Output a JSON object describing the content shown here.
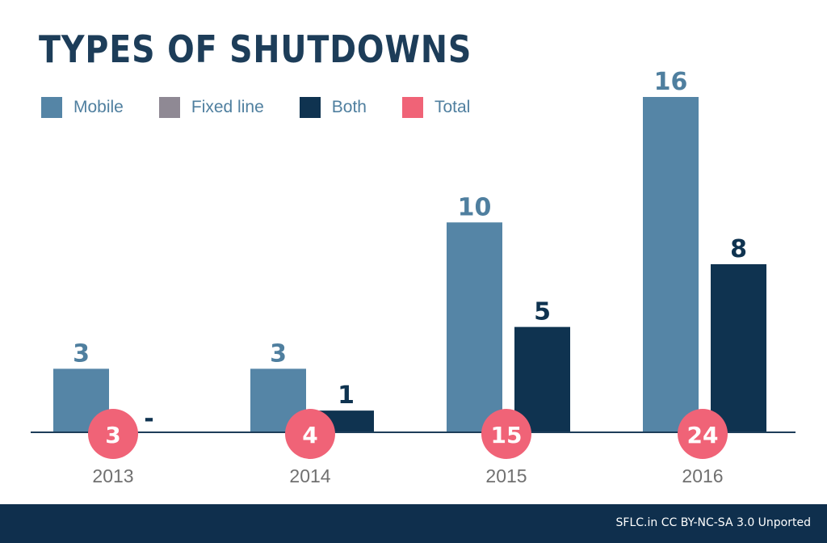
{
  "chart_data": {
    "type": "bar",
    "title": "TYPES OF SHUTDOWNS",
    "categories": [
      "2013",
      "2014",
      "2015",
      "2016"
    ],
    "series": [
      {
        "name": "Mobile",
        "color": "#5585a6",
        "values": [
          3,
          3,
          10,
          16
        ],
        "labels": [
          "3",
          "3",
          "10",
          "16"
        ]
      },
      {
        "name": "Fixed line",
        "color": "#8f8994",
        "values": [
          0,
          0,
          0,
          0
        ],
        "labels": [
          "",
          "",
          "",
          ""
        ]
      },
      {
        "name": "Both",
        "color": "#0f3350",
        "values": [
          0,
          1,
          5,
          8
        ],
        "labels": [
          "-",
          "1",
          "5",
          "8"
        ]
      }
    ],
    "totals": {
      "name": "Total",
      "color": "#f06377",
      "values": [
        3,
        4,
        15,
        24
      ]
    },
    "ylim": [
      0,
      16
    ],
    "grid": false,
    "legend": "top-left",
    "xlabel": "",
    "ylabel": ""
  },
  "footer": {
    "credit": "SFLC.in CC BY-NC-SA 3.0 Unported"
  }
}
